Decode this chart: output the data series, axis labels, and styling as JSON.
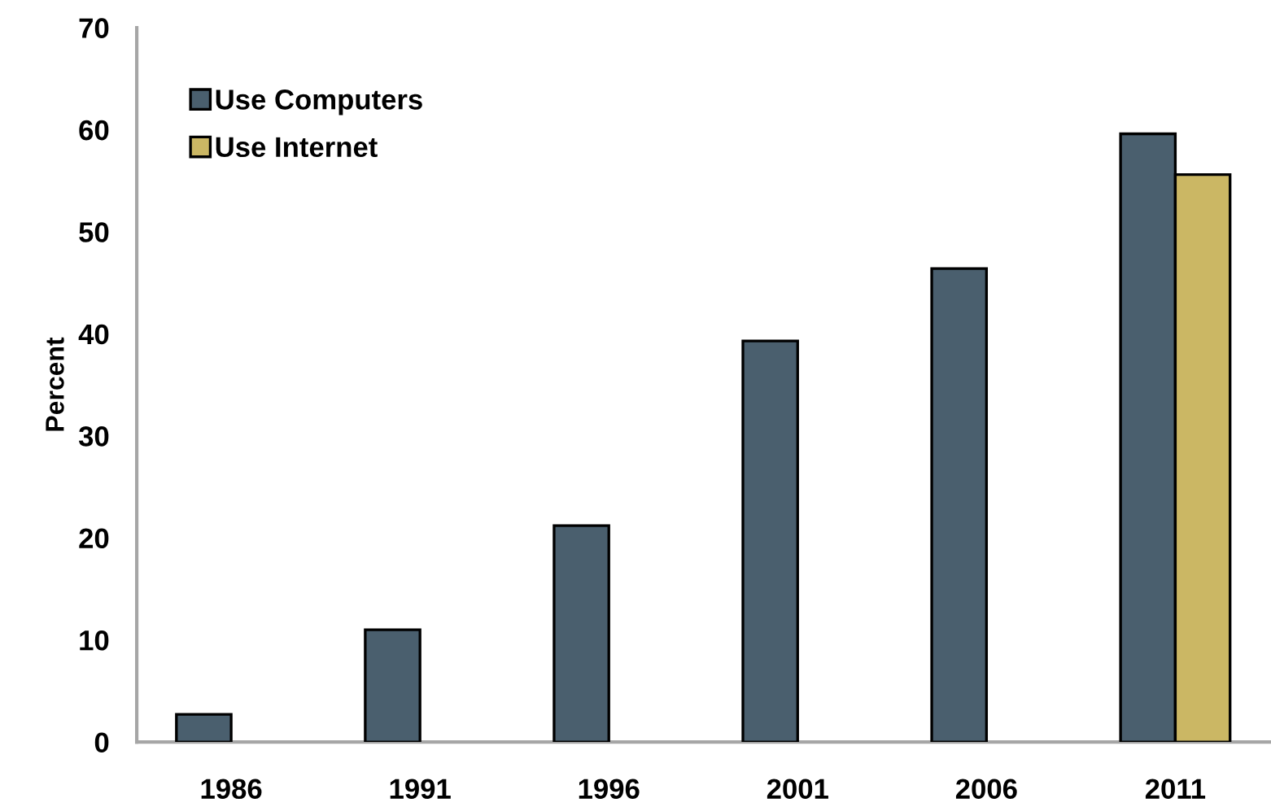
{
  "chart_data": {
    "type": "bar",
    "ylabel": "Percent",
    "categories": [
      "1986",
      "1991",
      "1996",
      "2001",
      "2006",
      "2011"
    ],
    "series": [
      {
        "name": "Use Computers",
        "color": "#4a5f6e",
        "values": [
          2.7,
          11.0,
          21.2,
          39.3,
          46.4,
          59.6
        ]
      },
      {
        "name": "Use Internet",
        "color": "#cbb764",
        "values": [
          null,
          null,
          null,
          null,
          null,
          55.6
        ]
      }
    ],
    "ylim": [
      0,
      70
    ],
    "yticks": [
      0,
      10,
      20,
      30,
      40,
      50,
      60,
      70
    ],
    "grid": false,
    "legend": "top left"
  }
}
